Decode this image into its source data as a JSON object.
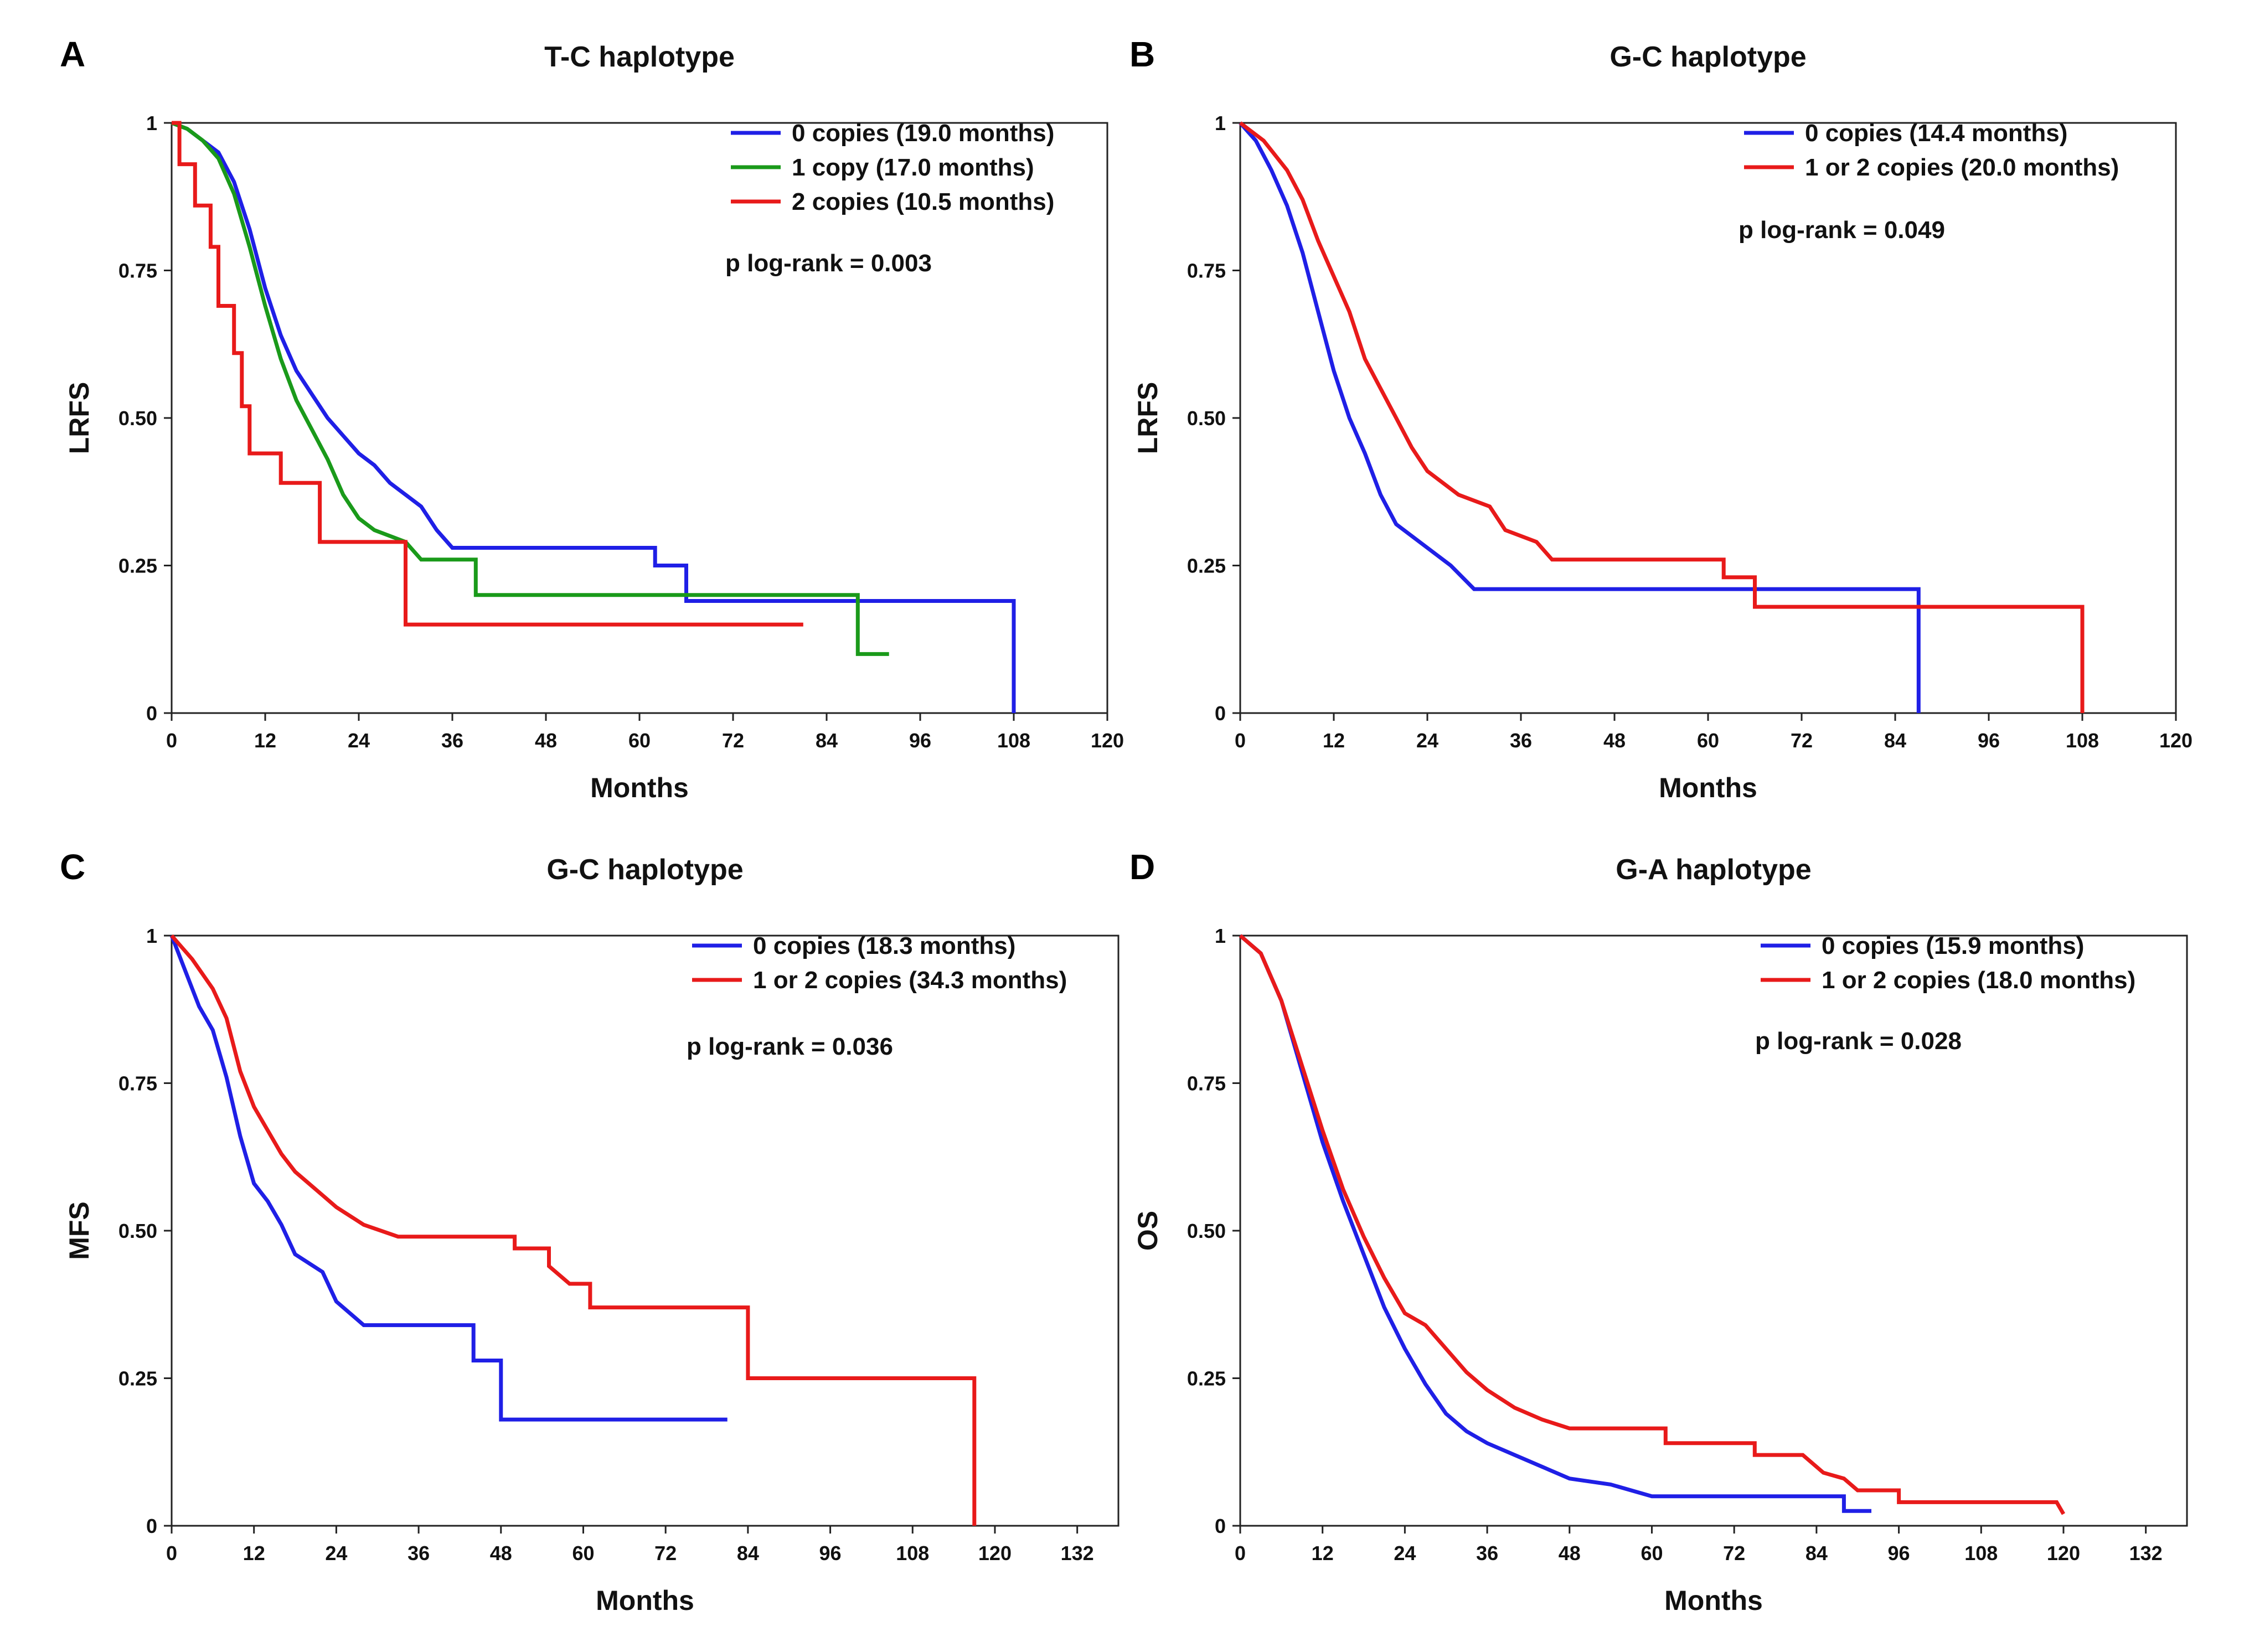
{
  "chart_data": [
    {
      "type": "line",
      "panel": "A",
      "title": "T-C haplotype",
      "xlabel": "Months",
      "ylabel": "LRFS",
      "xlim": [
        0,
        120
      ],
      "ylim": [
        0,
        1
      ],
      "x_ticks": [
        "0",
        "12",
        "24",
        "36",
        "48",
        "60",
        "72",
        "84",
        "96",
        "108",
        "120"
      ],
      "y_ticks": [
        "0",
        "0.25",
        "0.50",
        "0.75",
        "1"
      ],
      "p_text": "p log-rank = 0.003",
      "series": [
        {
          "name": "0 copies (19.0 months)",
          "color": "#1f1fe6",
          "points": [
            [
              0,
              1
            ],
            [
              2,
              0.99
            ],
            [
              4,
              0.97
            ],
            [
              6,
              0.95
            ],
            [
              8,
              0.9
            ],
            [
              10,
              0.82
            ],
            [
              12,
              0.72
            ],
            [
              14,
              0.64
            ],
            [
              16,
              0.58
            ],
            [
              18,
              0.54
            ],
            [
              20,
              0.5
            ],
            [
              22,
              0.47
            ],
            [
              24,
              0.44
            ],
            [
              26,
              0.42
            ],
            [
              28,
              0.39
            ],
            [
              30,
              0.37
            ],
            [
              32,
              0.35
            ],
            [
              34,
              0.31
            ],
            [
              36,
              0.28
            ],
            [
              62,
              0.28
            ],
            [
              62,
              0.25
            ],
            [
              66,
              0.25
            ],
            [
              66,
              0.19
            ],
            [
              108,
              0.19
            ],
            [
              108,
              0
            ]
          ]
        },
        {
          "name": "1 copy (17.0 months)",
          "color": "#1a9a1a",
          "points": [
            [
              0,
              1
            ],
            [
              2,
              0.99
            ],
            [
              4,
              0.97
            ],
            [
              6,
              0.94
            ],
            [
              8,
              0.88
            ],
            [
              10,
              0.79
            ],
            [
              12,
              0.69
            ],
            [
              14,
              0.6
            ],
            [
              16,
              0.53
            ],
            [
              18,
              0.48
            ],
            [
              20,
              0.43
            ],
            [
              22,
              0.37
            ],
            [
              24,
              0.33
            ],
            [
              26,
              0.31
            ],
            [
              30,
              0.29
            ],
            [
              32,
              0.26
            ],
            [
              39,
              0.26
            ],
            [
              39,
              0.2
            ],
            [
              88,
              0.2
            ],
            [
              88,
              0.1
            ],
            [
              92,
              0.1
            ]
          ]
        },
        {
          "name": "2 copies (10.5 months)",
          "color": "#e81a1a",
          "points": [
            [
              0,
              1
            ],
            [
              1,
              1
            ],
            [
              1,
              0.93
            ],
            [
              3,
              0.93
            ],
            [
              3,
              0.86
            ],
            [
              5,
              0.86
            ],
            [
              5,
              0.79
            ],
            [
              6,
              0.79
            ],
            [
              6,
              0.69
            ],
            [
              8,
              0.69
            ],
            [
              8,
              0.61
            ],
            [
              9,
              0.61
            ],
            [
              9,
              0.52
            ],
            [
              10,
              0.52
            ],
            [
              10,
              0.44
            ],
            [
              14,
              0.44
            ],
            [
              14,
              0.39
            ],
            [
              19,
              0.39
            ],
            [
              19,
              0.29
            ],
            [
              30,
              0.29
            ],
            [
              30,
              0.15
            ],
            [
              81,
              0.15
            ]
          ]
        }
      ]
    },
    {
      "type": "line",
      "panel": "B",
      "title": "G-C haplotype",
      "xlabel": "Months",
      "ylabel": "LRFS",
      "xlim": [
        0,
        120
      ],
      "ylim": [
        0,
        1
      ],
      "x_ticks": [
        "0",
        "12",
        "24",
        "36",
        "48",
        "60",
        "72",
        "84",
        "96",
        "108",
        "120"
      ],
      "y_ticks": [
        "0",
        "0.25",
        "0.50",
        "0.75",
        "1"
      ],
      "p_text": "p log-rank = 0.049",
      "series": [
        {
          "name": "0 copies (14.4 months)",
          "color": "#1f1fe6",
          "points": [
            [
              0,
              1
            ],
            [
              2,
              0.97
            ],
            [
              4,
              0.92
            ],
            [
              6,
              0.86
            ],
            [
              8,
              0.78
            ],
            [
              10,
              0.68
            ],
            [
              12,
              0.58
            ],
            [
              14,
              0.5
            ],
            [
              16,
              0.44
            ],
            [
              18,
              0.37
            ],
            [
              20,
              0.32
            ],
            [
              24,
              0.28
            ],
            [
              27,
              0.25
            ],
            [
              30,
              0.21
            ],
            [
              87,
              0.21
            ],
            [
              87,
              0
            ]
          ]
        },
        {
          "name": "1 or 2 copies (20.0 months)",
          "color": "#e81a1a",
          "points": [
            [
              0,
              1
            ],
            [
              3,
              0.97
            ],
            [
              6,
              0.92
            ],
            [
              8,
              0.87
            ],
            [
              10,
              0.8
            ],
            [
              12,
              0.74
            ],
            [
              14,
              0.68
            ],
            [
              16,
              0.6
            ],
            [
              18,
              0.55
            ],
            [
              20,
              0.5
            ],
            [
              22,
              0.45
            ],
            [
              24,
              0.41
            ],
            [
              26,
              0.39
            ],
            [
              28,
              0.37
            ],
            [
              32,
              0.35
            ],
            [
              34,
              0.31
            ],
            [
              38,
              0.29
            ],
            [
              40,
              0.26
            ],
            [
              62,
              0.26
            ],
            [
              62,
              0.23
            ],
            [
              66,
              0.23
            ],
            [
              66,
              0.18
            ],
            [
              108,
              0.18
            ],
            [
              108,
              0
            ]
          ]
        }
      ]
    },
    {
      "type": "line",
      "panel": "C",
      "title": "G-C haplotype",
      "xlabel": "Months",
      "ylabel": "MFS",
      "xlim": [
        0,
        138
      ],
      "ylim": [
        0,
        1
      ],
      "x_ticks": [
        "0",
        "12",
        "24",
        "36",
        "48",
        "60",
        "72",
        "84",
        "96",
        "108",
        "120",
        "132"
      ],
      "y_ticks": [
        "0",
        "0.25",
        "0.50",
        "0.75",
        "1"
      ],
      "p_text": "p log-rank = 0.036",
      "series": [
        {
          "name": "0 copies (18.3 months)",
          "color": "#1f1fe6",
          "points": [
            [
              0,
              1
            ],
            [
              2,
              0.94
            ],
            [
              4,
              0.88
            ],
            [
              6,
              0.84
            ],
            [
              8,
              0.76
            ],
            [
              10,
              0.66
            ],
            [
              12,
              0.58
            ],
            [
              14,
              0.55
            ],
            [
              16,
              0.51
            ],
            [
              18,
              0.46
            ],
            [
              22,
              0.43
            ],
            [
              24,
              0.38
            ],
            [
              28,
              0.34
            ],
            [
              44,
              0.34
            ],
            [
              44,
              0.28
            ],
            [
              48,
              0.28
            ],
            [
              48,
              0.18
            ],
            [
              81,
              0.18
            ]
          ]
        },
        {
          "name": "1 or 2 copies (34.3 months)",
          "color": "#e81a1a",
          "points": [
            [
              0,
              1
            ],
            [
              3,
              0.96
            ],
            [
              6,
              0.91
            ],
            [
              8,
              0.86
            ],
            [
              10,
              0.77
            ],
            [
              12,
              0.71
            ],
            [
              14,
              0.67
            ],
            [
              16,
              0.63
            ],
            [
              18,
              0.6
            ],
            [
              20,
              0.58
            ],
            [
              22,
              0.56
            ],
            [
              24,
              0.54
            ],
            [
              28,
              0.51
            ],
            [
              33,
              0.49
            ],
            [
              50,
              0.49
            ],
            [
              50,
              0.47
            ],
            [
              55,
              0.47
            ],
            [
              55,
              0.44
            ],
            [
              58,
              0.41
            ],
            [
              61,
              0.41
            ],
            [
              61,
              0.37
            ],
            [
              84,
              0.37
            ],
            [
              84,
              0.25
            ],
            [
              117,
              0.25
            ],
            [
              117,
              0
            ]
          ]
        }
      ]
    },
    {
      "type": "line",
      "panel": "D",
      "title": "G-A haplotype",
      "xlabel": "Months",
      "ylabel": "OS",
      "xlim": [
        0,
        138
      ],
      "ylim": [
        0,
        1
      ],
      "x_ticks": [
        "0",
        "12",
        "24",
        "36",
        "48",
        "60",
        "72",
        "84",
        "96",
        "108",
        "120",
        "132"
      ],
      "y_ticks": [
        "0",
        "0.25",
        "0.50",
        "0.75",
        "1"
      ],
      "p_text": "p log-rank = 0.028",
      "series": [
        {
          "name": "0 copies (15.9 months)",
          "color": "#1f1fe6",
          "points": [
            [
              0,
              1
            ],
            [
              3,
              0.97
            ],
            [
              6,
              0.89
            ],
            [
              9,
              0.77
            ],
            [
              12,
              0.65
            ],
            [
              15,
              0.55
            ],
            [
              18,
              0.46
            ],
            [
              21,
              0.37
            ],
            [
              24,
              0.3
            ],
            [
              27,
              0.24
            ],
            [
              30,
              0.19
            ],
            [
              33,
              0.16
            ],
            [
              36,
              0.14
            ],
            [
              40,
              0.12
            ],
            [
              44,
              0.1
            ],
            [
              48,
              0.08
            ],
            [
              54,
              0.07
            ],
            [
              60,
              0.05
            ],
            [
              88,
              0.05
            ],
            [
              88,
              0.025
            ],
            [
              92,
              0.025
            ]
          ]
        },
        {
          "name": "1 or 2 copies (18.0 months)",
          "color": "#e81a1a",
          "points": [
            [
              0,
              1
            ],
            [
              3,
              0.97
            ],
            [
              6,
              0.89
            ],
            [
              9,
              0.78
            ],
            [
              12,
              0.67
            ],
            [
              15,
              0.57
            ],
            [
              18,
              0.49
            ],
            [
              21,
              0.42
            ],
            [
              24,
              0.36
            ],
            [
              27,
              0.34
            ],
            [
              30,
              0.3
            ],
            [
              33,
              0.26
            ],
            [
              36,
              0.23
            ],
            [
              40,
              0.2
            ],
            [
              44,
              0.18
            ],
            [
              48,
              0.165
            ],
            [
              62,
              0.165
            ],
            [
              62,
              0.14
            ],
            [
              75,
              0.14
            ],
            [
              75,
              0.12
            ],
            [
              82,
              0.12
            ],
            [
              85,
              0.09
            ],
            [
              88,
              0.08
            ],
            [
              90,
              0.06
            ],
            [
              96,
              0.06
            ],
            [
              96,
              0.04
            ],
            [
              119,
              0.04
            ],
            [
              120,
              0.02
            ]
          ]
        }
      ]
    }
  ]
}
